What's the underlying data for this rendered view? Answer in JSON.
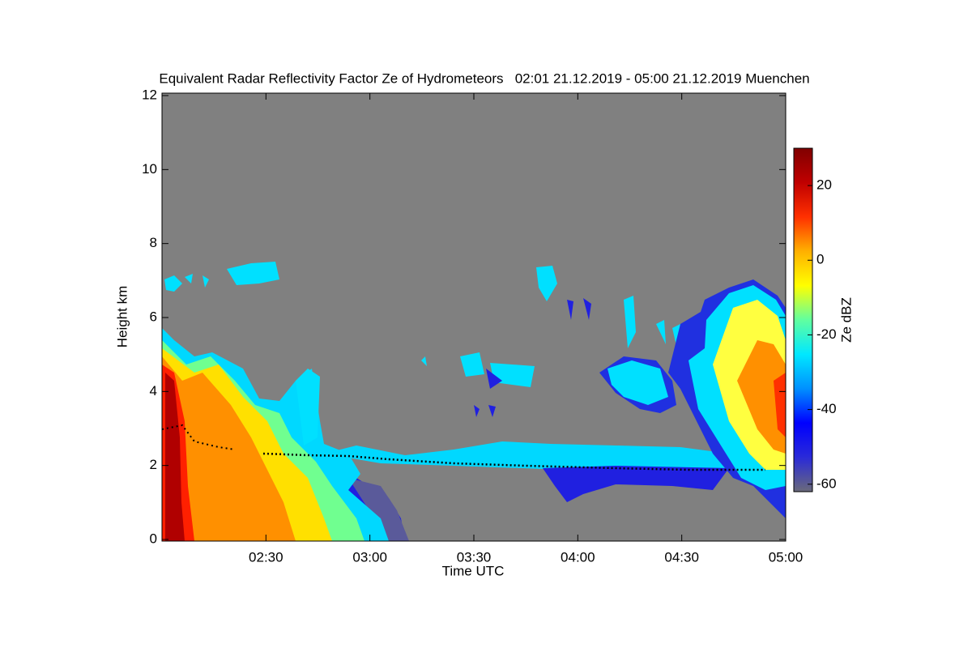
{
  "chart_data": {
    "type": "heatmap",
    "title": "Equivalent Radar Reflectivity Factor Ze of Hydrometeors   02:01 21.12.2019 - 05:00 21.12.2019 Muenchen",
    "x_label": "Time UTC",
    "y_label": "Height km",
    "xlim": [
      "02:00",
      "05:00"
    ],
    "xticks": [
      "02:30",
      "03:00",
      "03:30",
      "04:00",
      "04:30",
      "05:00"
    ],
    "ylim": [
      0,
      12
    ],
    "yticks": [
      0,
      2,
      4,
      6,
      8,
      10,
      12
    ],
    "colorbar": {
      "label": "Ze dBZ",
      "lim": [
        -62,
        30
      ],
      "ticks": [
        -60,
        -40,
        -20,
        0,
        20
      ],
      "colormap": [
        "#6a6a7a",
        "#2a2ad8",
        "#0000ff",
        "#0090ff",
        "#00e8ff",
        "#60ffa0",
        "#ffff00",
        "#ffb000",
        "#ff3000",
        "#c00000",
        "#800000"
      ]
    }
  }
}
